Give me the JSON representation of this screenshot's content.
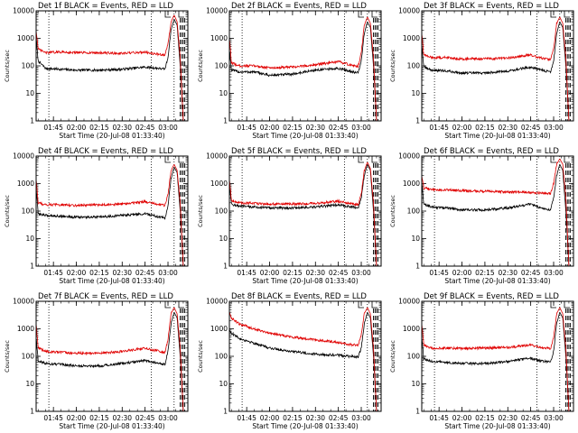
{
  "chart_data": [
    {
      "type": "line",
      "title": "Det 1f BLACK = Events, RED = LLD",
      "xlabel": "Start Time (20-Jul-08 01:33:40)",
      "ylabel": "Counts/sec",
      "yscale": "log",
      "ylim": [
        1,
        10000
      ],
      "xlim": [
        "01:33:40",
        "03:13:00"
      ],
      "x_ticks": [
        "01:45",
        "02:00",
        "02:15",
        "02:30",
        "02:45",
        "03:00"
      ],
      "y_ticks": [
        "1",
        "10",
        "100",
        "1000",
        "10000"
      ],
      "vlines_dotted": [
        "01:42",
        "02:49",
        "03:04"
      ],
      "vlines_dashed": [
        "03:08",
        "03:09",
        "03:10",
        "03:11"
      ],
      "x": [
        "01:33:40",
        "01:35",
        "01:40",
        "01:50",
        "02:00",
        "02:15",
        "02:30",
        "02:45",
        "02:50",
        "02:55",
        "02:58",
        "03:00",
        "03:02",
        "03:04",
        "03:06",
        "03:08",
        "03:10"
      ],
      "series": [
        {
          "name": "BLACK = Events",
          "color": "#000000",
          "values": [
            1000,
            150,
            80,
            75,
            70,
            70,
            75,
            90,
            85,
            80,
            75,
            200,
            2000,
            5000,
            3000,
            100,
            1
          ]
        },
        {
          "name": "RED = LLD",
          "color": "#e00000",
          "values": [
            2000,
            400,
            300,
            320,
            300,
            300,
            280,
            320,
            280,
            260,
            250,
            600,
            4000,
            7000,
            4000,
            200,
            1
          ]
        }
      ]
    },
    {
      "type": "line",
      "title": "Det 2f BLACK = Events, RED = LLD",
      "xlabel": "Start Time (20-Jul-08 01:33:40)",
      "ylabel": "Counts/sec",
      "yscale": "log",
      "ylim": [
        1,
        10000
      ],
      "xlim": [
        "01:33:40",
        "03:13:00"
      ],
      "x_ticks": [
        "01:45",
        "02:00",
        "02:15",
        "02:30",
        "02:45",
        "03:00"
      ],
      "y_ticks": [
        "1",
        "10",
        "100",
        "1000",
        "10000"
      ],
      "vlines_dotted": [
        "01:42",
        "02:49",
        "03:04"
      ],
      "vlines_dashed": [
        "03:08",
        "03:09",
        "03:10",
        "03:11"
      ],
      "x": [
        "01:33:40",
        "01:35",
        "01:40",
        "01:50",
        "02:00",
        "02:15",
        "02:30",
        "02:45",
        "02:50",
        "02:55",
        "02:58",
        "03:00",
        "03:02",
        "03:04",
        "03:06",
        "03:08",
        "03:10"
      ],
      "series": [
        {
          "name": "BLACK = Events",
          "color": "#000000",
          "values": [
            400,
            70,
            60,
            60,
            45,
            50,
            70,
            80,
            70,
            60,
            55,
            150,
            1500,
            4000,
            2500,
            100,
            1
          ]
        },
        {
          "name": "RED = LLD",
          "color": "#e00000",
          "values": [
            1000,
            130,
            100,
            100,
            85,
            90,
            110,
            140,
            120,
            100,
            95,
            300,
            3000,
            6000,
            3500,
            200,
            1
          ]
        }
      ]
    },
    {
      "type": "line",
      "title": "Det 3f BLACK = Events, RED = LLD",
      "xlabel": "Start Time (20-Jul-08 01:33:40)",
      "ylabel": "Counts/sec",
      "yscale": "log",
      "ylim": [
        1,
        10000
      ],
      "xlim": [
        "01:33:40",
        "03:13:00"
      ],
      "x_ticks": [
        "01:45",
        "02:00",
        "02:15",
        "02:30",
        "02:45",
        "03:00"
      ],
      "y_ticks": [
        "1",
        "10",
        "100",
        "1000",
        "10000"
      ],
      "vlines_dotted": [
        "01:42",
        "02:49",
        "03:04"
      ],
      "vlines_dashed": [
        "03:08",
        "03:09",
        "03:10",
        "03:11"
      ],
      "x": [
        "01:33:40",
        "01:35",
        "01:40",
        "01:50",
        "02:00",
        "02:15",
        "02:30",
        "02:45",
        "02:50",
        "02:55",
        "02:58",
        "03:00",
        "03:02",
        "03:04",
        "03:06",
        "03:08",
        "03:10"
      ],
      "series": [
        {
          "name": "BLACK = Events",
          "color": "#000000",
          "values": [
            600,
            90,
            70,
            65,
            55,
            55,
            65,
            90,
            75,
            65,
            60,
            150,
            1500,
            4000,
            2500,
            100,
            1
          ]
        },
        {
          "name": "RED = LLD",
          "color": "#e00000",
          "values": [
            1500,
            250,
            200,
            200,
            180,
            180,
            190,
            250,
            200,
            180,
            170,
            400,
            3500,
            6000,
            3500,
            200,
            1
          ]
        }
      ]
    },
    {
      "type": "line",
      "title": "Det 4f BLACK = Events, RED = LLD",
      "xlabel": "Start Time (20-Jul-08 01:33:40)",
      "ylabel": "Counts/sec",
      "yscale": "log",
      "ylim": [
        1,
        10000
      ],
      "xlim": [
        "01:33:40",
        "03:13:00"
      ],
      "x_ticks": [
        "01:45",
        "02:00",
        "02:15",
        "02:30",
        "02:45",
        "03:00"
      ],
      "y_ticks": [
        "1",
        "10",
        "100",
        "1000",
        "10000"
      ],
      "vlines_dotted": [
        "01:42",
        "02:49",
        "03:04"
      ],
      "vlines_dashed": [
        "03:08",
        "03:09",
        "03:10",
        "03:11"
      ],
      "x": [
        "01:33:40",
        "01:35",
        "01:40",
        "01:50",
        "02:00",
        "02:15",
        "02:30",
        "02:45",
        "02:50",
        "02:55",
        "02:58",
        "03:00",
        "03:02",
        "03:04",
        "03:06",
        "03:08",
        "03:10"
      ],
      "series": [
        {
          "name": "BLACK = Events",
          "color": "#000000",
          "values": [
            700,
            80,
            70,
            65,
            60,
            60,
            70,
            80,
            70,
            60,
            55,
            150,
            1500,
            4000,
            2500,
            100,
            1
          ]
        },
        {
          "name": "RED = LLD",
          "color": "#e00000",
          "values": [
            1500,
            200,
            170,
            170,
            160,
            170,
            180,
            220,
            190,
            170,
            160,
            400,
            3000,
            5000,
            3000,
            200,
            1
          ]
        }
      ]
    },
    {
      "type": "line",
      "title": "Det 5f BLACK = Events, RED = LLD",
      "xlabel": "Start Time (20-Jul-08 01:33:40)",
      "ylabel": "Counts/sec",
      "yscale": "log",
      "ylim": [
        1,
        10000
      ],
      "xlim": [
        "01:33:40",
        "03:13:00"
      ],
      "x_ticks": [
        "01:45",
        "02:00",
        "02:15",
        "02:30",
        "02:45",
        "03:00"
      ],
      "y_ticks": [
        "1",
        "10",
        "100",
        "1000",
        "10000"
      ],
      "vlines_dotted": [
        "01:42",
        "02:49",
        "03:04"
      ],
      "vlines_dashed": [
        "03:08",
        "03:09",
        "03:10",
        "03:11"
      ],
      "x": [
        "01:33:40",
        "01:35",
        "01:40",
        "01:50",
        "02:00",
        "02:15",
        "02:30",
        "02:45",
        "02:50",
        "02:55",
        "02:58",
        "03:00",
        "03:02",
        "03:04",
        "03:06",
        "03:08",
        "03:10"
      ],
      "series": [
        {
          "name": "BLACK = Events",
          "color": "#000000",
          "values": [
            1000,
            180,
            150,
            140,
            130,
            130,
            140,
            170,
            150,
            140,
            130,
            300,
            2000,
            5000,
            3000,
            100,
            1
          ]
        },
        {
          "name": "RED = LLD",
          "color": "#e00000",
          "values": [
            1500,
            250,
            200,
            190,
            180,
            180,
            190,
            230,
            200,
            180,
            170,
            400,
            3000,
            6000,
            3500,
            200,
            1
          ]
        }
      ]
    },
    {
      "type": "line",
      "title": "Det 6f BLACK = Events, RED = LLD",
      "xlabel": "Start Time (20-Jul-08 01:33:40)",
      "ylabel": "Counts/sec",
      "yscale": "log",
      "ylim": [
        1,
        10000
      ],
      "xlim": [
        "01:33:40",
        "03:13:00"
      ],
      "x_ticks": [
        "01:45",
        "02:00",
        "02:15",
        "02:30",
        "02:45",
        "03:00"
      ],
      "y_ticks": [
        "1",
        "10",
        "100",
        "1000",
        "10000"
      ],
      "vlines_dotted": [
        "01:42",
        "02:49",
        "03:04"
      ],
      "vlines_dashed": [
        "03:08",
        "03:09",
        "03:10",
        "03:11"
      ],
      "x": [
        "01:33:40",
        "01:35",
        "01:40",
        "01:50",
        "02:00",
        "02:15",
        "02:30",
        "02:45",
        "02:50",
        "02:55",
        "02:58",
        "03:00",
        "03:02",
        "03:04",
        "03:06",
        "03:08",
        "03:10"
      ],
      "series": [
        {
          "name": "BLACK = Events",
          "color": "#000000",
          "values": [
            1000,
            180,
            140,
            130,
            110,
            110,
            130,
            180,
            140,
            120,
            110,
            300,
            2000,
            5000,
            3000,
            100,
            1
          ]
        },
        {
          "name": "RED = LLD",
          "color": "#e00000",
          "values": [
            2000,
            700,
            600,
            580,
            550,
            520,
            500,
            480,
            460,
            450,
            440,
            1000,
            5000,
            8000,
            5000,
            300,
            1
          ]
        }
      ]
    },
    {
      "type": "line",
      "title": "Det 7f BLACK = Events, RED = LLD",
      "xlabel": "Start Time (20-Jul-08 01:33:40)",
      "ylabel": "Counts/sec",
      "yscale": "log",
      "ylim": [
        1,
        10000
      ],
      "xlim": [
        "01:33:40",
        "03:13:00"
      ],
      "x_ticks": [
        "01:45",
        "02:00",
        "02:15",
        "02:30",
        "02:45",
        "03:00"
      ],
      "y_ticks": [
        "1",
        "10",
        "100",
        "1000",
        "10000"
      ],
      "vlines_dotted": [
        "01:42",
        "02:49",
        "03:04"
      ],
      "vlines_dashed": [
        "03:08",
        "03:09",
        "03:10",
        "03:11"
      ],
      "x": [
        "01:33:40",
        "01:35",
        "01:40",
        "01:50",
        "02:00",
        "02:15",
        "02:30",
        "02:45",
        "02:50",
        "02:55",
        "02:58",
        "03:00",
        "03:02",
        "03:04",
        "03:06",
        "03:08",
        "03:10"
      ],
      "series": [
        {
          "name": "BLACK = Events",
          "color": "#000000",
          "values": [
            500,
            70,
            55,
            50,
            45,
            45,
            55,
            70,
            60,
            55,
            50,
            150,
            1500,
            4000,
            2500,
            100,
            1
          ]
        },
        {
          "name": "RED = LLD",
          "color": "#e00000",
          "values": [
            1500,
            200,
            150,
            140,
            130,
            130,
            150,
            200,
            170,
            150,
            140,
            400,
            3500,
            6000,
            3500,
            200,
            1
          ]
        }
      ]
    },
    {
      "type": "line",
      "title": "Det 8f BLACK = Events, RED = LLD",
      "xlabel": "Start Time (20-Jul-08 01:33:40)",
      "ylabel": "Counts/sec",
      "yscale": "log",
      "ylim": [
        1,
        10000
      ],
      "xlim": [
        "01:33:40",
        "03:13:00"
      ],
      "x_ticks": [
        "01:45",
        "02:00",
        "02:15",
        "02:30",
        "02:45",
        "03:00"
      ],
      "y_ticks": [
        "1",
        "10",
        "100",
        "1000",
        "10000"
      ],
      "vlines_dotted": [
        "01:42",
        "02:49",
        "03:04"
      ],
      "vlines_dashed": [
        "03:08",
        "03:09",
        "03:10",
        "03:11"
      ],
      "x": [
        "01:33:40",
        "01:35",
        "01:40",
        "01:50",
        "02:00",
        "02:15",
        "02:30",
        "02:45",
        "02:50",
        "02:55",
        "02:58",
        "03:00",
        "03:02",
        "03:04",
        "03:06",
        "03:08",
        "03:10"
      ],
      "series": [
        {
          "name": "BLACK = Events",
          "color": "#000000",
          "values": [
            900,
            700,
            450,
            300,
            200,
            150,
            120,
            110,
            100,
            100,
            95,
            200,
            1500,
            4000,
            2500,
            100,
            1
          ]
        },
        {
          "name": "RED = LLD",
          "color": "#e00000",
          "values": [
            4000,
            2500,
            1500,
            1000,
            700,
            500,
            400,
            320,
            280,
            260,
            250,
            600,
            3500,
            6000,
            3500,
            200,
            1
          ]
        }
      ]
    },
    {
      "type": "line",
      "title": "Det 9f BLACK = Events, RED = LLD",
      "xlabel": "Start Time (20-Jul-08 01:33:40)",
      "ylabel": "Counts/sec",
      "yscale": "log",
      "ylim": [
        1,
        10000
      ],
      "xlim": [
        "01:33:40",
        "03:13:00"
      ],
      "x_ticks": [
        "01:45",
        "02:00",
        "02:15",
        "02:30",
        "02:45",
        "03:00"
      ],
      "y_ticks": [
        "1",
        "10",
        "100",
        "1000",
        "10000"
      ],
      "vlines_dotted": [
        "01:42",
        "02:49",
        "03:04"
      ],
      "vlines_dashed": [
        "03:08",
        "03:09",
        "03:10",
        "03:11"
      ],
      "x": [
        "01:33:40",
        "01:35",
        "01:40",
        "01:50",
        "02:00",
        "02:15",
        "02:30",
        "02:45",
        "02:50",
        "02:55",
        "02:58",
        "03:00",
        "03:02",
        "03:04",
        "03:06",
        "03:08",
        "03:10"
      ],
      "series": [
        {
          "name": "BLACK = Events",
          "color": "#000000",
          "values": [
            500,
            80,
            65,
            60,
            55,
            55,
            65,
            85,
            70,
            65,
            60,
            150,
            1500,
            4000,
            2500,
            100,
            1
          ]
        },
        {
          "name": "RED = LLD",
          "color": "#e00000",
          "values": [
            1500,
            250,
            200,
            200,
            190,
            200,
            210,
            260,
            220,
            200,
            190,
            500,
            3500,
            6000,
            3500,
            200,
            1
          ]
        }
      ]
    }
  ]
}
